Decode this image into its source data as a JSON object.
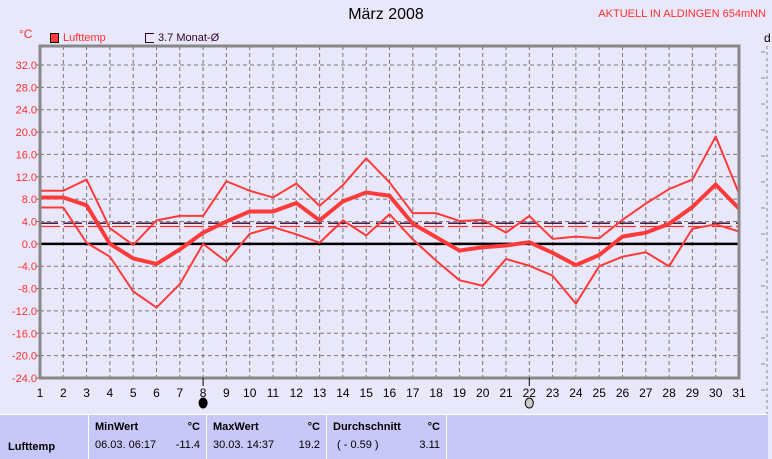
{
  "title": "März 2008",
  "station": "AKTUELL IN ALDINGEN 654mNN",
  "y_unit": "°C",
  "right_axis_label": "d",
  "legend": [
    {
      "label": "Lufttemp",
      "color": "#ff3a3a"
    },
    {
      "label": "3.7 Monat-Ø",
      "color": "#300030"
    }
  ],
  "moon_phases": [
    {
      "day": 8,
      "phase": "new-moon"
    },
    {
      "day": 22,
      "phase": "full-moon"
    }
  ],
  "chart_data": {
    "type": "line",
    "title": "März 2008",
    "ylabel": "°C",
    "x": [
      1,
      2,
      3,
      4,
      5,
      6,
      7,
      8,
      9,
      10,
      11,
      12,
      13,
      14,
      15,
      16,
      17,
      18,
      19,
      20,
      21,
      22,
      23,
      24,
      25,
      26,
      27,
      28,
      29,
      30,
      31
    ],
    "ylim": [
      -24,
      35.4
    ],
    "yticks": [
      -24,
      -20,
      -16,
      -12,
      -8,
      -4,
      0,
      4,
      8,
      12,
      16,
      20,
      24,
      28,
      32
    ],
    "ytick_labels": [
      "-24.0",
      "-20.0",
      "-16.0",
      "-12.0",
      "-8.0",
      "-4.0",
      "0.0",
      "4.0",
      "8.0",
      "12.0",
      "16.0",
      "20.0",
      "24.0",
      "28.0",
      "32.0"
    ],
    "grid": true,
    "series": [
      {
        "role": "max",
        "values": [
          9.5,
          9.5,
          11.5,
          2.8,
          -0.2,
          4.2,
          5,
          5,
          11.2,
          9.5,
          8.3,
          10.8,
          6.8,
          10.5,
          15.3,
          11,
          5.5,
          5.5,
          4.1,
          4.3,
          2,
          5,
          0.9,
          1.3,
          1,
          4.3,
          7.2,
          9.8,
          11.5,
          19.2,
          9
        ]
      },
      {
        "role": "mean",
        "values": [
          8.3,
          8.3,
          6.9,
          0,
          -2.6,
          -3.6,
          -1,
          2,
          4,
          5.8,
          5.8,
          7.3,
          4.2,
          7.6,
          9.2,
          8.6,
          3.6,
          1.2,
          -1.2,
          -0.6,
          -0.3,
          0.3,
          -1.6,
          -3.8,
          -2,
          1.3,
          2,
          3.6,
          6.6,
          10.6,
          6.3
        ]
      },
      {
        "role": "min",
        "values": [
          6.5,
          6.5,
          0.2,
          -2.3,
          -8.5,
          -11.4,
          -7.2,
          0,
          -3.2,
          1.8,
          3,
          1.7,
          0.2,
          4.2,
          1.5,
          5.3,
          0.8,
          -3,
          -6.5,
          -7.5,
          -2.7,
          -3.9,
          -5.7,
          -10.7,
          -4,
          -2.3,
          -1.5,
          -4,
          2.7,
          3.5,
          2.2
        ]
      }
    ],
    "reference_lines": [
      {
        "label": "3.7 Monat-Ø",
        "value": 3.7,
        "color": "#300030"
      },
      {
        "value": 3.11,
        "color": "#ff3030"
      }
    ],
    "line_color": "#ff3a3a"
  },
  "stats": {
    "row_label": "Lufttemp",
    "unit": "°C",
    "min": {
      "header": "MinWert",
      "date": "06.03.  06:17",
      "value": "-11.4"
    },
    "max": {
      "header": "MaxWert",
      "date": "30.03.  14:37",
      "value": "19.2"
    },
    "avg": {
      "header": "Durchschnitt",
      "extra": "( - 0.59 )",
      "value": "3.11"
    }
  }
}
